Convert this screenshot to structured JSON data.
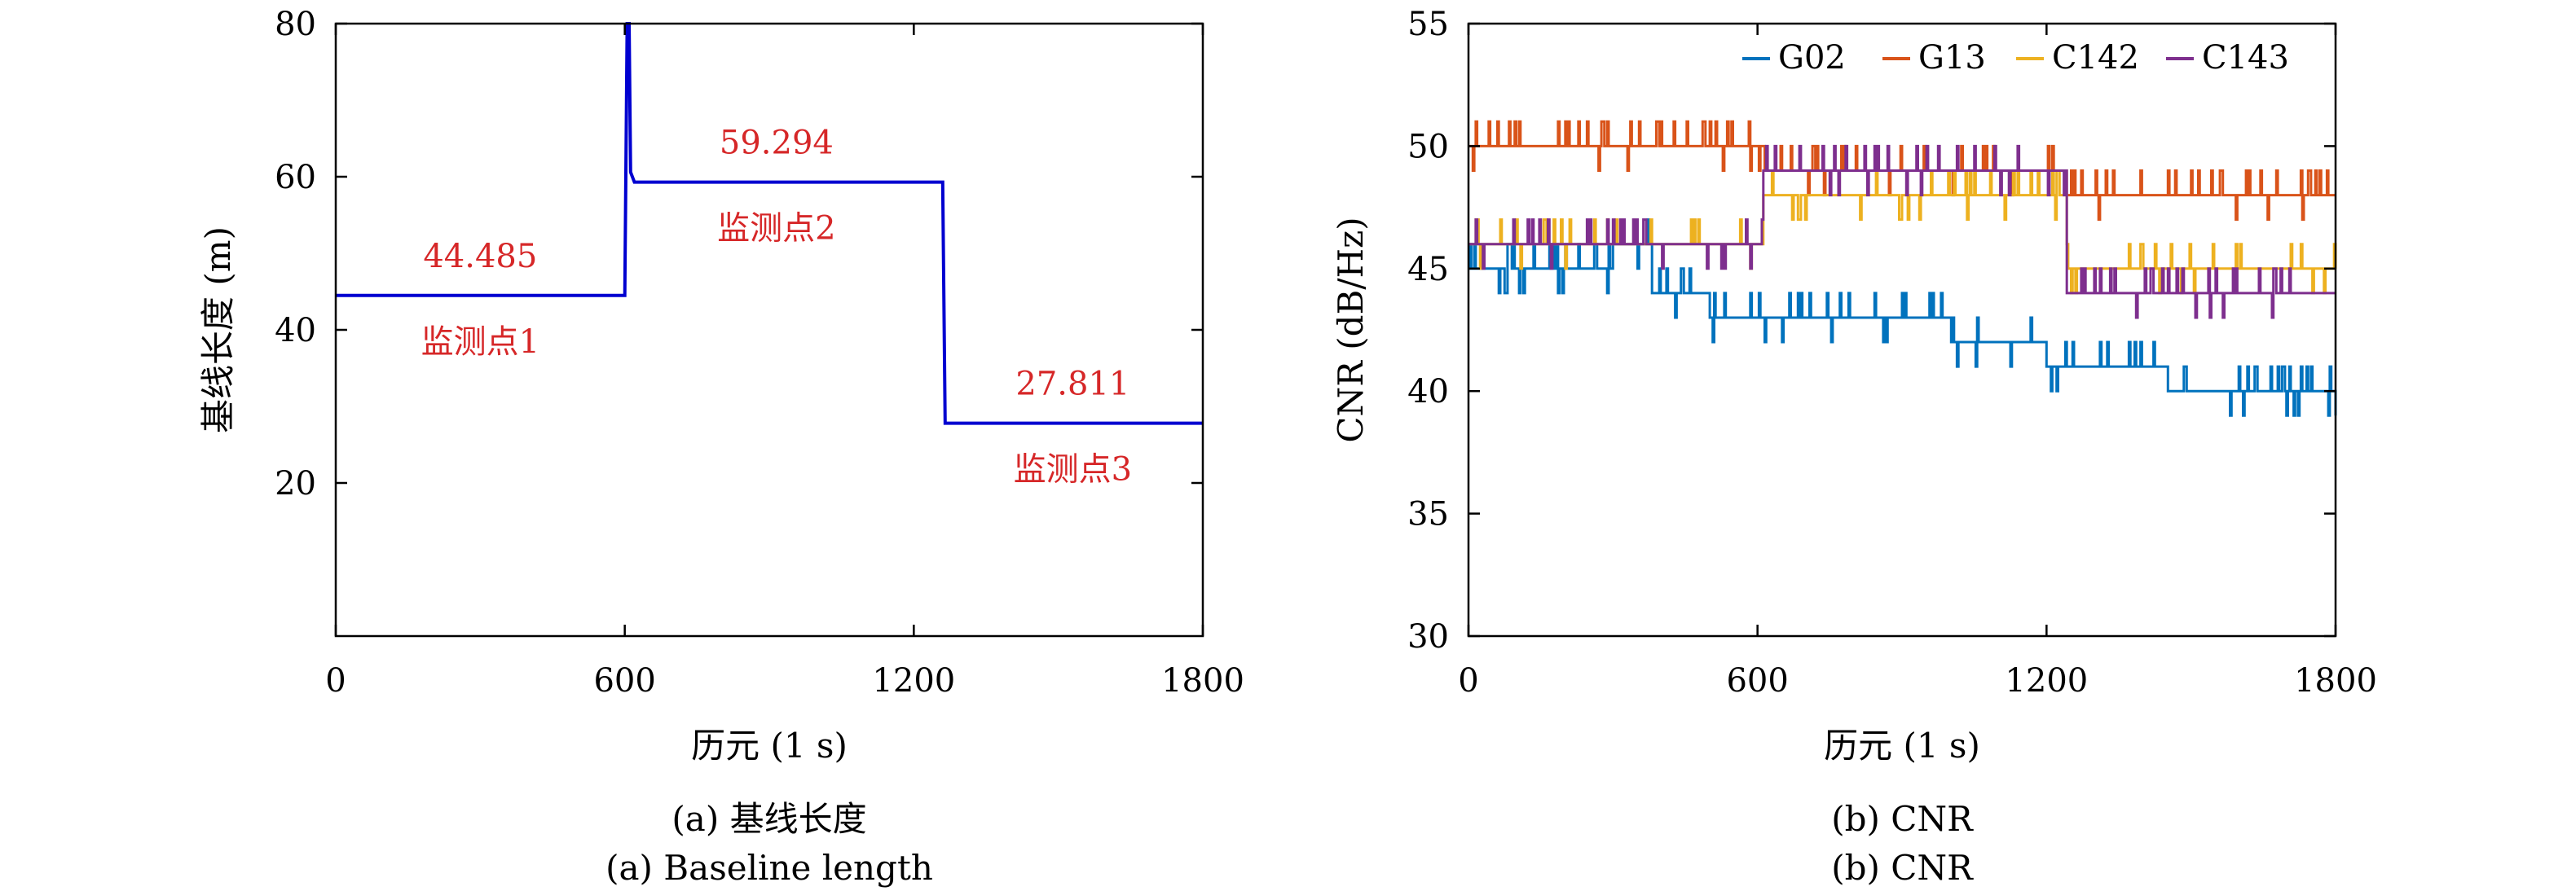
{
  "chart_data": [
    {
      "id": "a",
      "type": "line",
      "caption": [
        "(a) 基线长度",
        "(a) Baseline length"
      ],
      "xlabel": "历元 (1 s)",
      "ylabel": "基线长度 (m)",
      "xlim": [
        0,
        1800
      ],
      "ylim": [
        0,
        80
      ],
      "xticks": [
        0,
        600,
        1200,
        1800
      ],
      "yticks": [
        20,
        40,
        60,
        80
      ],
      "grid": false,
      "series": [
        {
          "color": "#0000d0",
          "points": [
            [
              0,
              44.485
            ],
            [
              600,
              44.485
            ],
            [
              605,
              80
            ],
            [
              609,
              80
            ],
            [
              612,
              60.6
            ],
            [
              620,
              59.294
            ],
            [
              1260,
              59.294
            ],
            [
              1265,
              27.811
            ],
            [
              1800,
              27.811
            ]
          ]
        }
      ],
      "annotations": [
        {
          "label": "监测点1",
          "value": "44.485",
          "x": 300,
          "y": 44.485
        },
        {
          "label": "监测点2",
          "value": "59.294",
          "x": 915,
          "y": 59.294
        },
        {
          "label": "监测点3",
          "value": "27.811",
          "x": 1530,
          "y": 27.811
        }
      ]
    },
    {
      "id": "b",
      "type": "line",
      "caption": [
        "(b) CNR",
        "(b) CNR"
      ],
      "xlabel": "历元 (1 s)",
      "ylabel": "CNR (dB/Hz)",
      "xlim": [
        0,
        1800
      ],
      "ylim": [
        30,
        55
      ],
      "xticks": [
        0,
        600,
        1200,
        1800
      ],
      "yticks": [
        30,
        35,
        40,
        45,
        50,
        55
      ],
      "grid": false,
      "legend_position": "top-right",
      "series": [
        {
          "name": "G02",
          "color": "#0072BD",
          "levels": [
            [
              0,
              45
            ],
            [
              250,
              45
            ],
            [
              300,
              46
            ],
            [
              380,
              44
            ],
            [
              500,
              43
            ],
            [
              700,
              43
            ],
            [
              1000,
              42
            ],
            [
              1100,
              42
            ],
            [
              1200,
              41
            ],
            [
              1350,
              41
            ],
            [
              1450,
              40
            ],
            [
              1800,
              40
            ]
          ]
        },
        {
          "name": "G13",
          "color": "#D95319",
          "levels": [
            [
              0,
              50
            ],
            [
              600,
              50
            ],
            [
              612,
              49
            ],
            [
              1220,
              49
            ],
            [
              1240,
              48
            ],
            [
              1800,
              48
            ]
          ]
        },
        {
          "name": "C142",
          "color": "#EDB120",
          "levels": [
            [
              0,
              46
            ],
            [
              600,
              46
            ],
            [
              612,
              48
            ],
            [
              1220,
              48
            ],
            [
              1240,
              45
            ],
            [
              1800,
              45
            ]
          ]
        },
        {
          "name": "C143",
          "color": "#7E2F8E",
          "levels": [
            [
              0,
              46
            ],
            [
              600,
              46
            ],
            [
              612,
              49
            ],
            [
              1230,
              49
            ],
            [
              1240,
              44
            ],
            [
              1800,
              44
            ]
          ]
        }
      ]
    }
  ]
}
